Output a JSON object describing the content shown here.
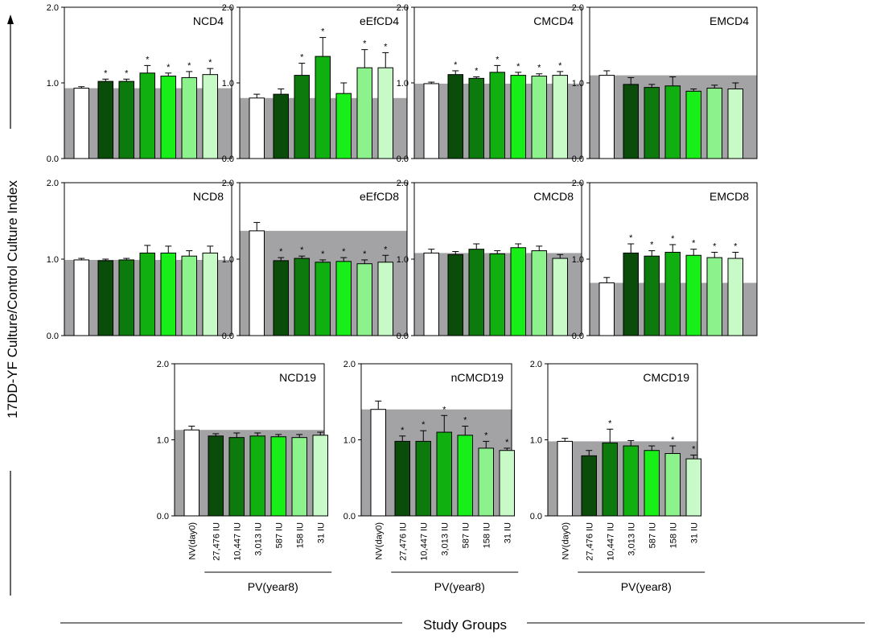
{
  "figure": {
    "y_axis_title": "17DD-YF Culture/Control Culture Index",
    "x_axis_title": "Study Groups",
    "group_label": "PV(year8)"
  },
  "chart_data": {
    "type": "bar",
    "ylim": [
      0,
      2
    ],
    "yticks": [
      "0.0",
      "1.0",
      "2.0"
    ],
    "categories": [
      "NV(day0)",
      "27,476 IU",
      "10,447 IU",
      "3,013 IU",
      "587 IU",
      "158 IU",
      "31 IU"
    ],
    "bar_colors": [
      "#ffffff",
      "#0a4d0a",
      "#0c7a0c",
      "#10b010",
      "#18ee18",
      "#8cf28c",
      "#c8fac8"
    ],
    "background_color": "#a3a2a5",
    "panels": [
      {
        "title": "NCD4",
        "reference": 0.93,
        "values": [
          0.93,
          1.02,
          1.02,
          1.13,
          1.09,
          1.07,
          1.11
        ],
        "errors": [
          0.02,
          0.03,
          0.03,
          0.1,
          0.04,
          0.08,
          0.08
        ],
        "sig": [
          false,
          true,
          true,
          true,
          true,
          true,
          true
        ]
      },
      {
        "title": "eEfCD4",
        "reference": 0.8,
        "values": [
          0.8,
          0.85,
          1.1,
          1.35,
          0.86,
          1.2,
          1.2
        ],
        "errors": [
          0.05,
          0.07,
          0.16,
          0.25,
          0.14,
          0.24,
          0.2
        ],
        "sig": [
          false,
          false,
          true,
          true,
          false,
          true,
          true
        ]
      },
      {
        "title": "CMCD4",
        "reference": 0.99,
        "values": [
          0.99,
          1.11,
          1.06,
          1.14,
          1.1,
          1.09,
          1.1
        ],
        "errors": [
          0.02,
          0.05,
          0.02,
          0.09,
          0.04,
          0.03,
          0.05
        ],
        "sig": [
          false,
          true,
          true,
          true,
          true,
          true,
          true
        ]
      },
      {
        "title": "EMCD4",
        "reference": 1.1,
        "values": [
          1.1,
          0.98,
          0.94,
          0.96,
          0.89,
          0.93,
          0.92
        ],
        "errors": [
          0.06,
          0.09,
          0.04,
          0.12,
          0.03,
          0.04,
          0.08
        ],
        "sig": [
          false,
          false,
          false,
          false,
          false,
          false,
          false
        ]
      },
      {
        "title": "NCD8",
        "reference": 0.99,
        "values": [
          0.99,
          0.98,
          0.99,
          1.08,
          1.08,
          1.04,
          1.08
        ],
        "errors": [
          0.02,
          0.02,
          0.02,
          0.1,
          0.09,
          0.07,
          0.09
        ],
        "sig": [
          false,
          false,
          false,
          false,
          false,
          false,
          false
        ]
      },
      {
        "title": "eEfCD8",
        "reference": 1.37,
        "values": [
          1.37,
          0.98,
          1.01,
          0.96,
          0.97,
          0.94,
          0.96
        ],
        "errors": [
          0.11,
          0.04,
          0.03,
          0.03,
          0.05,
          0.05,
          0.09
        ],
        "sig": [
          false,
          true,
          true,
          true,
          true,
          true,
          true
        ]
      },
      {
        "title": "CMCD8",
        "reference": 1.08,
        "values": [
          1.08,
          1.06,
          1.13,
          1.07,
          1.15,
          1.11,
          1.01
        ],
        "errors": [
          0.05,
          0.04,
          0.07,
          0.04,
          0.05,
          0.06,
          0.05
        ],
        "sig": [
          false,
          false,
          false,
          false,
          false,
          false,
          false
        ]
      },
      {
        "title": "EMCD8",
        "reference": 0.69,
        "values": [
          0.69,
          1.08,
          1.04,
          1.09,
          1.05,
          1.02,
          1.01
        ],
        "errors": [
          0.07,
          0.12,
          0.07,
          0.1,
          0.08,
          0.07,
          0.08
        ],
        "sig": [
          false,
          true,
          true,
          true,
          true,
          true,
          true
        ]
      },
      {
        "title": "NCD19",
        "reference": 1.13,
        "values": [
          1.13,
          1.05,
          1.03,
          1.05,
          1.04,
          1.03,
          1.06
        ],
        "errors": [
          0.05,
          0.03,
          0.06,
          0.04,
          0.03,
          0.04,
          0.04
        ],
        "sig": [
          false,
          false,
          false,
          false,
          false,
          false,
          false
        ]
      },
      {
        "title": "nCMCD19",
        "reference": 1.4,
        "values": [
          1.4,
          0.98,
          0.98,
          1.1,
          1.06,
          0.89,
          0.86
        ],
        "errors": [
          0.11,
          0.07,
          0.14,
          0.22,
          0.12,
          0.09,
          0.03
        ],
        "sig": [
          false,
          true,
          true,
          true,
          true,
          true,
          true
        ]
      },
      {
        "title": "CMCD19",
        "reference": 0.98,
        "values": [
          0.98,
          0.79,
          0.96,
          0.92,
          0.86,
          0.82,
          0.75
        ],
        "errors": [
          0.04,
          0.07,
          0.18,
          0.07,
          0.06,
          0.1,
          0.05
        ],
        "sig": [
          false,
          false,
          true,
          false,
          false,
          true,
          true
        ]
      }
    ]
  }
}
